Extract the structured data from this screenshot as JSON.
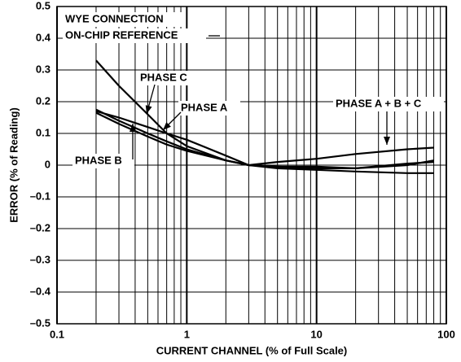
{
  "chart_data": {
    "type": "line",
    "x_label": "CURRENT CHANNEL (% of Full Scale)",
    "y_label": "ERROR (% of Reading)",
    "annotations": [
      "WYE CONNECTION",
      "ON-CHIP REFERENCE"
    ],
    "x": [
      0.2,
      0.3,
      0.5,
      0.7,
      1,
      2,
      3,
      5,
      10,
      20,
      50,
      80
    ],
    "series": [
      {
        "name": "PHASE C",
        "color": "#000000",
        "values": [
          0.33,
          0.25,
          0.16,
          0.1,
          0.06,
          0.015,
          0,
          -0.01,
          -0.015,
          -0.02,
          -0.025,
          -0.025
        ]
      },
      {
        "name": "PHASE A + B + C",
        "color": "#000000",
        "values": [
          0.17,
          0.15,
          0.12,
          0.1,
          0.08,
          0.03,
          0,
          0.01,
          0.02,
          0.035,
          0.05,
          0.055
        ]
      },
      {
        "name": "PHASE A",
        "color": "#000000",
        "values": [
          0.165,
          0.13,
          0.09,
          0.065,
          0.045,
          0.015,
          0,
          -0.005,
          -0.01,
          -0.01,
          0,
          0.015
        ]
      },
      {
        "name": "PHASE B",
        "color": "#000000",
        "values": [
          0.175,
          0.14,
          0.1,
          0.075,
          0.05,
          0.015,
          0,
          -0.005,
          -0.005,
          -0.01,
          0.005,
          0.01
        ]
      }
    ],
    "xlim": [
      0.1,
      100
    ],
    "xticks": [
      0.1,
      1,
      10,
      100
    ],
    "x_log": true,
    "ylim": [
      -0.5,
      0.5
    ],
    "yticks": [
      {
        "value": -0.5,
        "label": "–0.5"
      },
      {
        "value": -0.4,
        "label": "–0.4"
      },
      {
        "value": -0.3,
        "label": "–0.3"
      },
      {
        "value": -0.2,
        "label": "–0.2"
      },
      {
        "value": -0.1,
        "label": "–0.1"
      },
      0,
      0.1,
      0.2,
      0.3,
      0.4,
      0.5
    ],
    "grid": true,
    "minor_grid": true
  }
}
